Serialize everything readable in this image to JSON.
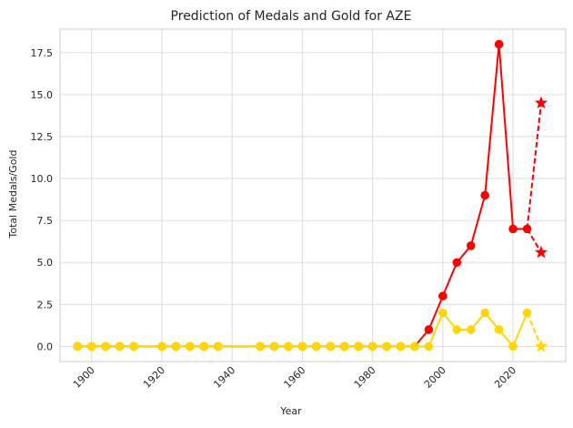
{
  "chart_data": {
    "type": "line",
    "title": "Prediction of Medals and Gold for AZE",
    "xlabel": "Year",
    "ylabel": "Total Medals/Gold",
    "xlim": [
      1891,
      2035
    ],
    "ylim": [
      -0.9,
      18.9
    ],
    "x_ticks": [
      1900,
      1920,
      1940,
      1960,
      1980,
      2000,
      2020
    ],
    "x_tick_labels": [
      "1900",
      "1920",
      "1940",
      "1960",
      "1980",
      "2000",
      "2020"
    ],
    "y_ticks": [
      0,
      2.5,
      5,
      7.5,
      10,
      12.5,
      15,
      17.5
    ],
    "y_tick_labels": [
      "0.0",
      "2.5",
      "5.0",
      "7.5",
      "10.0",
      "12.5",
      "15.0",
      "17.5"
    ],
    "grid": true,
    "colors": {
      "total": "#ff0000",
      "gold": "#ffd700",
      "grid": "#d9d9d9",
      "frame": "#cccccc"
    },
    "series": [
      {
        "key": "total",
        "color": "#ff0000",
        "x": [
          1896,
          1900,
          1904,
          1908,
          1912,
          1920,
          1924,
          1928,
          1932,
          1936,
          1948,
          1952,
          1956,
          1960,
          1964,
          1968,
          1972,
          1976,
          1980,
          1984,
          1988,
          1992,
          1996,
          2000,
          2004,
          2008,
          2012,
          2016,
          2020,
          2024
        ],
        "y": [
          0,
          0,
          0,
          0,
          0,
          0,
          0,
          0,
          0,
          0,
          0,
          0,
          0,
          0,
          0,
          0,
          0,
          0,
          0,
          0,
          0,
          0,
          1,
          3,
          5,
          6,
          9,
          18,
          7,
          7
        ]
      },
      {
        "key": "gold",
        "color": "#ffd700",
        "x": [
          1896,
          1900,
          1904,
          1908,
          1912,
          1920,
          1924,
          1928,
          1932,
          1936,
          1948,
          1952,
          1956,
          1960,
          1964,
          1968,
          1972,
          1976,
          1980,
          1984,
          1988,
          1992,
          1996,
          2000,
          2004,
          2008,
          2012,
          2016,
          2020,
          2024
        ],
        "y": [
          0,
          0,
          0,
          0,
          0,
          0,
          0,
          0,
          0,
          0,
          0,
          0,
          0,
          0,
          0,
          0,
          0,
          0,
          0,
          0,
          0,
          0,
          0,
          2,
          1,
          1,
          2,
          1,
          0,
          2
        ]
      }
    ],
    "predictions": [
      {
        "key": "total-prediction",
        "color": "#ff0000",
        "x": [
          2024,
          2028
        ],
        "y": [
          7,
          14.5
        ],
        "marker": "star"
      },
      {
        "key": "total-prediction-2",
        "color": "#ff0000",
        "x": [
          2024,
          2028
        ],
        "y": [
          7,
          5.6
        ],
        "marker": "star"
      },
      {
        "key": "gold-prediction",
        "color": "#ffd700",
        "x": [
          2024,
          2028
        ],
        "y": [
          2,
          0
        ],
        "marker": "star"
      }
    ]
  }
}
